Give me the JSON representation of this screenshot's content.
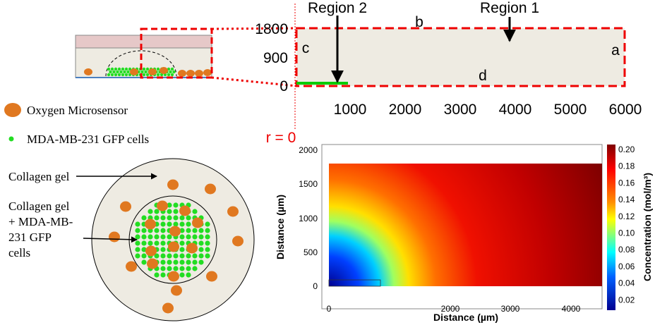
{
  "schematic": {
    "region_2": "Region 2",
    "region_1": "Region 1",
    "edge_a": "a",
    "edge_b": "b",
    "edge_c": "c",
    "edge_d": "d",
    "y_ticks": [
      "1800",
      "900",
      "0"
    ],
    "x_ticks": [
      "1000",
      "2000",
      "3000",
      "4000",
      "5000",
      "6000"
    ],
    "symmetry_label": "r = 0"
  },
  "legend": {
    "oxygen": "Oxygen Microsensor",
    "cells": "MDA-MB-231 GFP cells"
  },
  "top_view": {
    "outer_label": "Collagen gel",
    "inner_label": [
      "Collagen gel",
      "+ MDA-MB-",
      "231 GFP",
      "cells"
    ]
  },
  "heatmap": {
    "x_label": "Distance (µm)",
    "y_label": "Distance (µm)",
    "x_ticks": [
      "0",
      "2000",
      "3000",
      "4000"
    ],
    "y_ticks": [
      "2000",
      "1500",
      "1000",
      "500",
      "0"
    ],
    "colorbar_label": "Concentration (mol/m³)",
    "colorbar_ticks": [
      "0.20",
      "0.18",
      "0.16",
      "0.14",
      "0.12",
      "0.10",
      "0.08",
      "0.06",
      "0.04",
      "0.02"
    ]
  }
}
